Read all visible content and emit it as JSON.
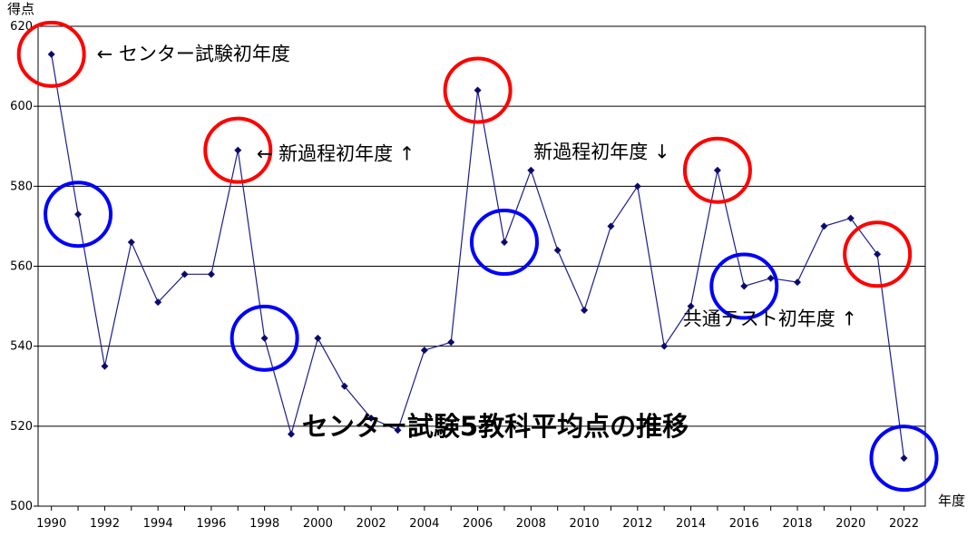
{
  "chart_data": {
    "type": "line",
    "title": "センター試験5教科平均点の推移",
    "xlabel": "年度",
    "ylabel": "得点",
    "xlim": [
      1989.5,
      2022.8
    ],
    "ylim": [
      500,
      620
    ],
    "y_ticks": [
      500,
      520,
      540,
      560,
      580,
      600,
      620
    ],
    "x_ticks": [
      1990,
      1992,
      1994,
      1996,
      1998,
      2000,
      2002,
      2004,
      2006,
      2008,
      2010,
      2012,
      2014,
      2016,
      2018,
      2020,
      2022
    ],
    "grid": "horizontal",
    "colors": {
      "line": "#1c1c8c",
      "marker": "#0a0a6e",
      "red_circle": "#ff0000",
      "blue_circle": "#0000ff",
      "grid": "#000000"
    },
    "series": [
      {
        "x": [
          1990,
          1991,
          1992,
          1993,
          1994,
          1995,
          1996,
          1997,
          1998,
          1999,
          2000,
          2001,
          2002,
          2003,
          2004,
          2005,
          2006,
          2007,
          2008,
          2009,
          2010,
          2011,
          2012,
          2013,
          2014,
          2015,
          2016,
          2017,
          2018,
          2019,
          2020,
          2021,
          2022
        ],
        "values": [
          613,
          573,
          535,
          566,
          551,
          558,
          558,
          589,
          542,
          518,
          542,
          530,
          522,
          519,
          539,
          541,
          604,
          566,
          584,
          564,
          549,
          570,
          580,
          540,
          550,
          584,
          555,
          557,
          556,
          570,
          572,
          563,
          512
        ]
      }
    ],
    "red_circles": [
      1990,
      1997,
      2006,
      2015,
      2021
    ],
    "blue_circles": [
      1991,
      1998,
      2007,
      2016,
      2022
    ],
    "annotations": [
      {
        "text": "← センター試験初年度",
        "x": 1991.7,
        "y": 611.5
      },
      {
        "text": "← 新過程初年度 ↑",
        "x": 1997.7,
        "y": 586.5
      },
      {
        "text": "新過程初年度 ↓",
        "x": 2008.1,
        "y": 587
      },
      {
        "text": "共通テスト初年度 ↑",
        "x": 2013.7,
        "y": 545.2
      }
    ]
  }
}
